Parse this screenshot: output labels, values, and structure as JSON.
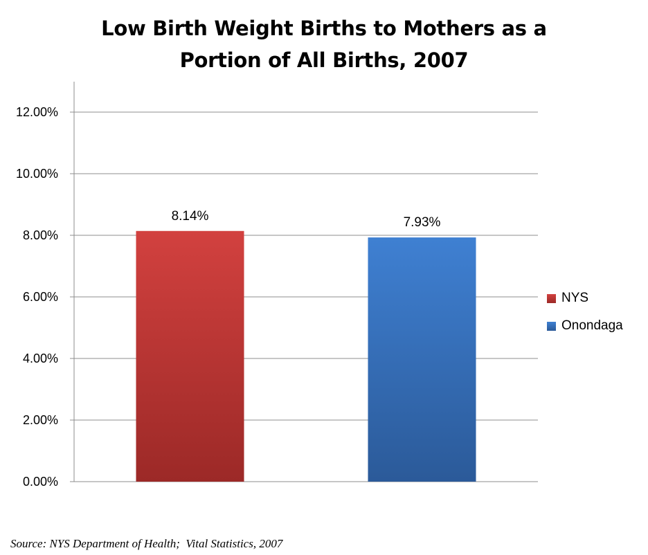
{
  "chart_data": {
    "type": "bar",
    "title_lines": [
      "Low Birth Weight Births to Mothers as a",
      "Portion of All Births, 2007"
    ],
    "xlabel": "",
    "ylabel": "",
    "ylim": [
      0,
      12
    ],
    "y_ticks": [
      {
        "value": 0,
        "label": "0.00%"
      },
      {
        "value": 2,
        "label": "2.00%"
      },
      {
        "value": 4,
        "label": "4.00%"
      },
      {
        "value": 6,
        "label": "6.00%"
      },
      {
        "value": 8,
        "label": "8.00%"
      },
      {
        "value": 10,
        "label": "10.00%"
      },
      {
        "value": 12,
        "label": "12.00%"
      }
    ],
    "grid": true,
    "legend_position": "right",
    "series": [
      {
        "name": "NYS",
        "value": 8.14,
        "value_label": "8.14%",
        "color": "#b83230",
        "color_light": "#d2413f",
        "color_dark": "#9c2927"
      },
      {
        "name": "Onondaga",
        "value": 7.93,
        "value_label": "7.93%",
        "color": "#3770bd",
        "color_light": "#3f80d2",
        "color_dark": "#2b5a99"
      }
    ]
  },
  "source_note": "Source: NYS Department of Health;  Vital Statistics, 2007"
}
